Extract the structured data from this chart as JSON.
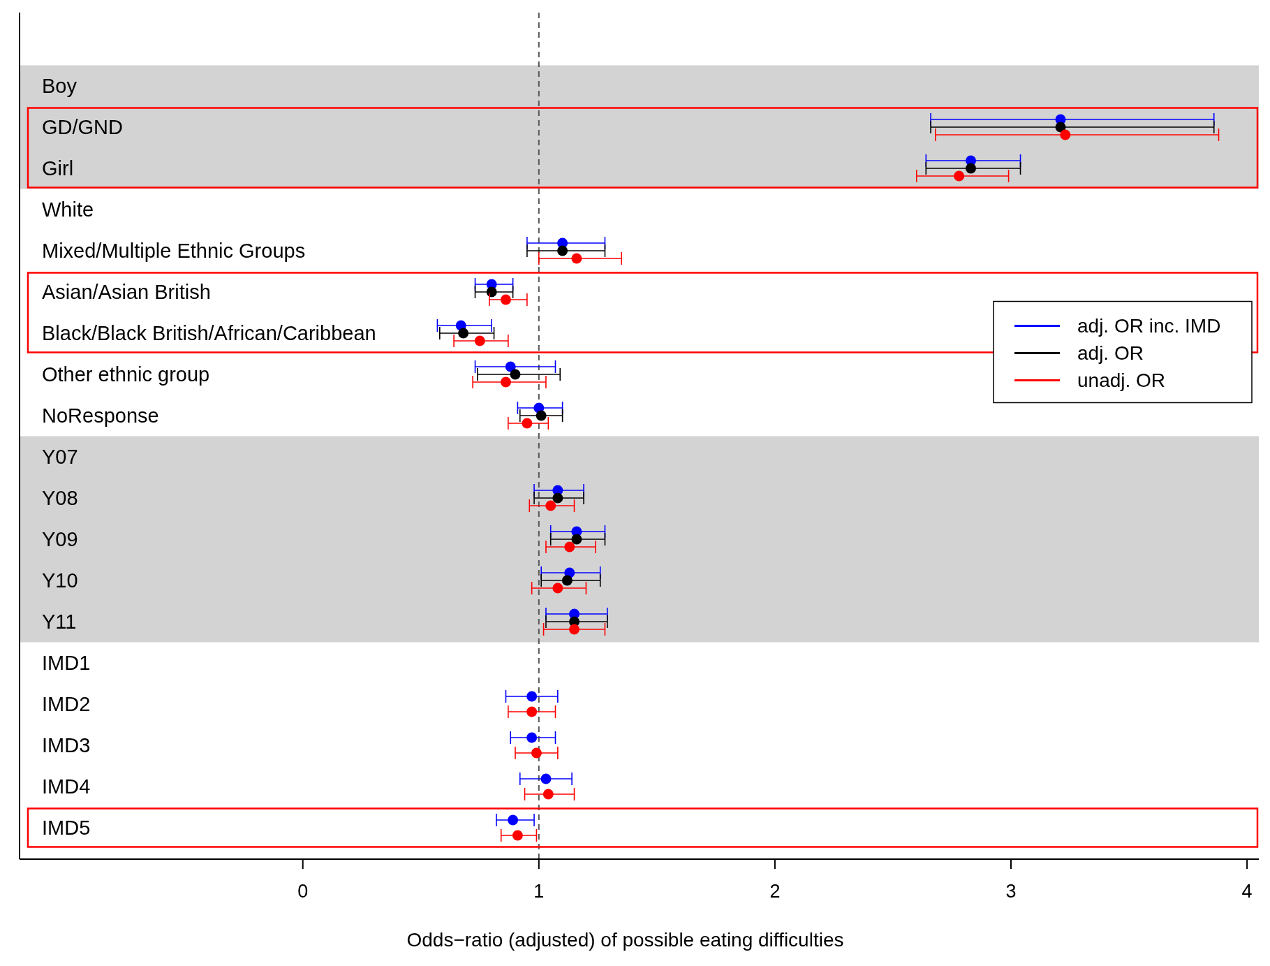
{
  "chart_data": {
    "type": "scatter",
    "orientation": "horizontal",
    "xlabel": "Odds−ratio (adjusted) of possible eating difficulties",
    "categories": [
      "Boy",
      "GD/GND",
      "Girl",
      "White",
      "Mixed/Multiple Ethnic Groups",
      "Asian/Asian British",
      "Black/Black British/African/Caribbean",
      "Other ethnic group",
      "NoResponse",
      "Y07",
      "Y08",
      "Y09",
      "Y10",
      "Y11",
      "IMD1",
      "IMD2",
      "IMD3",
      "IMD4",
      "IMD5"
    ],
    "xlim": [
      -1.2,
      4.05
    ],
    "xticks": [
      0,
      1,
      2,
      3,
      4
    ],
    "legend": "right",
    "marker": "circle",
    "grid": false,
    "series": [
      {
        "name": "adj. OR inc. IMD",
        "color": "#0000ff",
        "values": [
          null,
          3.21,
          2.83,
          null,
          1.1,
          0.8,
          0.67,
          0.88,
          1.0,
          null,
          1.08,
          1.16,
          1.13,
          1.15,
          null,
          0.97,
          0.97,
          1.03,
          0.89
        ],
        "errors": [
          null,
          [
            2.66,
            3.86
          ],
          [
            2.64,
            3.04
          ],
          null,
          [
            0.95,
            1.28
          ],
          [
            0.73,
            0.89
          ],
          [
            0.57,
            0.8
          ],
          [
            0.73,
            1.07
          ],
          [
            0.91,
            1.1
          ],
          null,
          [
            0.98,
            1.19
          ],
          [
            1.05,
            1.28
          ],
          [
            1.01,
            1.26
          ],
          [
            1.03,
            1.29
          ],
          null,
          [
            0.86,
            1.08
          ],
          [
            0.88,
            1.07
          ],
          [
            0.92,
            1.14
          ],
          [
            0.82,
            0.98
          ]
        ]
      },
      {
        "name": "adj. OR",
        "color": "#000000",
        "values": [
          null,
          3.21,
          2.83,
          null,
          1.1,
          0.8,
          0.68,
          0.9,
          1.01,
          null,
          1.08,
          1.16,
          1.12,
          1.15,
          null,
          null,
          null,
          null,
          null
        ],
        "errors": [
          null,
          [
            2.66,
            3.86
          ],
          [
            2.64,
            3.04
          ],
          null,
          [
            0.95,
            1.28
          ],
          [
            0.73,
            0.89
          ],
          [
            0.58,
            0.81
          ],
          [
            0.74,
            1.09
          ],
          [
            0.92,
            1.1
          ],
          null,
          [
            0.98,
            1.19
          ],
          [
            1.05,
            1.28
          ],
          [
            1.01,
            1.26
          ],
          [
            1.03,
            1.29
          ],
          null,
          null,
          null,
          null,
          null
        ]
      },
      {
        "name": "unadj. OR",
        "color": "#ff0000",
        "values": [
          null,
          3.23,
          2.78,
          null,
          1.16,
          0.86,
          0.75,
          0.86,
          0.95,
          null,
          1.05,
          1.13,
          1.08,
          1.15,
          null,
          0.97,
          0.99,
          1.04,
          0.91
        ],
        "errors": [
          null,
          [
            2.68,
            3.88
          ],
          [
            2.6,
            2.99
          ],
          null,
          [
            1.0,
            1.35
          ],
          [
            0.79,
            0.95
          ],
          [
            0.64,
            0.87
          ],
          [
            0.72,
            1.03
          ],
          [
            0.87,
            1.04
          ],
          null,
          [
            0.96,
            1.15
          ],
          [
            1.03,
            1.24
          ],
          [
            0.97,
            1.2
          ],
          [
            1.02,
            1.28
          ],
          null,
          [
            0.87,
            1.07
          ],
          [
            0.9,
            1.08
          ],
          [
            0.94,
            1.15
          ],
          [
            0.84,
            0.99
          ]
        ]
      }
    ],
    "ref_lines": [
      {
        "axis": "x",
        "value": 1,
        "line_style": "dashed",
        "color": "#555555"
      }
    ],
    "bands": [
      {
        "axis": "y",
        "from": "Boy",
        "to": "Girl",
        "color": "#d3d3d3"
      },
      {
        "axis": "y",
        "from": "Y07",
        "to": "Y11",
        "color": "#d3d3d3"
      }
    ]
  }
}
